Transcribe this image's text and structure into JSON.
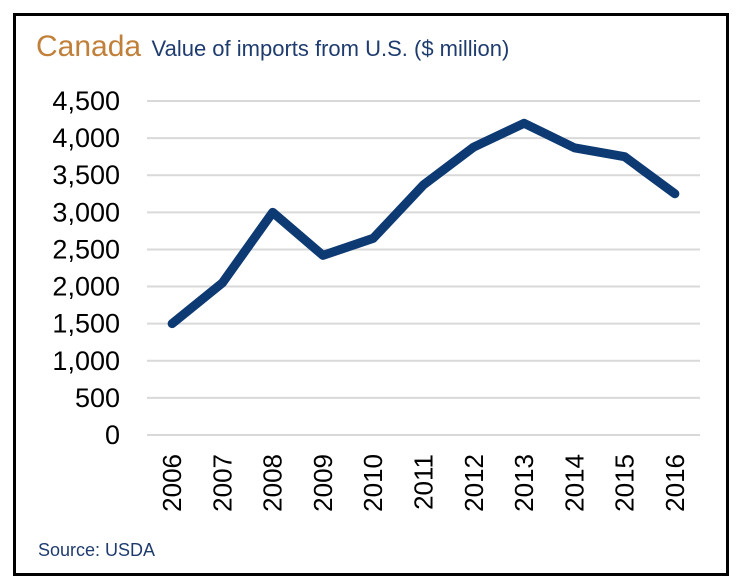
{
  "chart_data": {
    "type": "line",
    "title": "Canada",
    "subtitle": "Value of imports from U.S. ($ million)",
    "xlabel": "",
    "ylabel": "",
    "source": "Source: USDA",
    "categories": [
      "2006",
      "2007",
      "2008",
      "2009",
      "2010",
      "2011",
      "2012",
      "2013",
      "2014",
      "2015",
      "2016"
    ],
    "series": [
      {
        "values": [
          1500,
          2050,
          3000,
          2420,
          2650,
          3370,
          3880,
          4200,
          3870,
          3750,
          3250
        ]
      }
    ],
    "yticks": [
      "0",
      "500",
      "1,000",
      "1,500",
      "2,000",
      "2,500",
      "3,000",
      "3,500",
      "4,000",
      "4,500"
    ],
    "ylim": [
      0,
      4500
    ],
    "grid": true,
    "line_color": "#0d3a73",
    "grid_color": "#d9d9d9"
  }
}
